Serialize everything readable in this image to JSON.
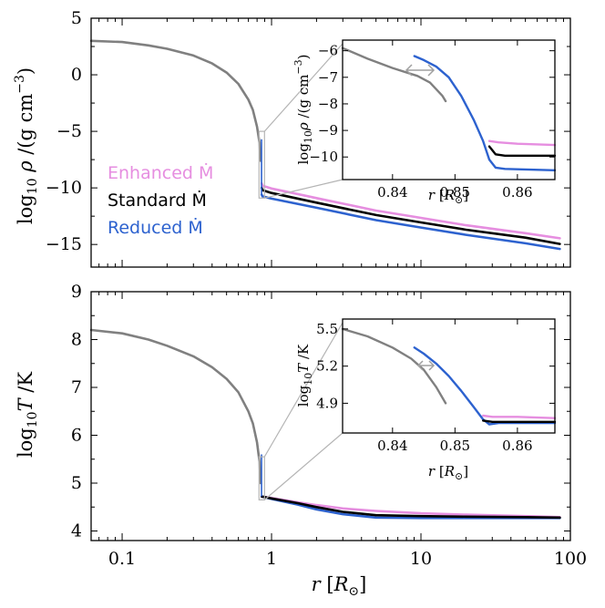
{
  "chart_data": [
    {
      "type": "line",
      "panel": "top",
      "xscale": "log",
      "xlim": [
        0.062,
        100
      ],
      "ylim": [
        -17,
        5
      ],
      "xlabel": "r [R_sun]",
      "ylabel": "log10 rho /(g cm^-3)",
      "yticks": [
        "5",
        "0",
        "−5",
        "−10",
        "−15"
      ],
      "ytick_values": [
        5,
        0,
        -5,
        -10,
        -15
      ],
      "grid": false,
      "legend_position": "left",
      "series": [
        {
          "name": "Enhanced Ṁ",
          "color": "#e68ee0",
          "x": [
            0.859,
            0.87,
            1.0,
            2.0,
            5.0,
            10,
            20,
            50,
            85
          ],
          "y": [
            -9.6,
            -9.8,
            -10.05,
            -10.9,
            -12.0,
            -12.65,
            -13.3,
            -14.0,
            -14.45
          ]
        },
        {
          "name": "Standard Ṁ",
          "color": "#000000",
          "x": [
            0.859,
            0.87,
            1.0,
            2.0,
            5.0,
            10,
            20,
            50,
            85
          ],
          "y": [
            -10.0,
            -10.2,
            -10.45,
            -11.3,
            -12.4,
            -13.05,
            -13.7,
            -14.4,
            -14.95
          ]
        },
        {
          "name": "Reduced Ṁ",
          "color": "#2d62cf",
          "x": [
            0.859,
            0.87,
            1.0,
            2.0,
            5.0,
            10,
            20,
            50,
            85
          ],
          "y": [
            -10.6,
            -10.75,
            -10.95,
            -11.75,
            -12.85,
            -13.5,
            -14.15,
            -14.9,
            -15.4
          ]
        },
        {
          "name": "",
          "color": "#808080",
          "x": [
            0.062,
            0.1,
            0.15,
            0.2,
            0.3,
            0.4,
            0.5,
            0.6,
            0.7,
            0.75,
            0.8,
            0.83,
            0.845
          ],
          "y": [
            3.0,
            2.9,
            2.6,
            2.3,
            1.7,
            1.0,
            0.2,
            -0.8,
            -2.2,
            -3.1,
            -4.6,
            -6.0,
            -7.6
          ]
        }
      ],
      "inset": {
        "xlim": [
          0.832,
          0.866
        ],
        "ylim": [
          -10.85,
          -5.6
        ],
        "xticks": [
          "0.84",
          "0.85",
          "0.86"
        ],
        "xtick_values": [
          0.84,
          0.85,
          0.86
        ],
        "yticks": [
          "−6",
          "−7",
          "−8",
          "−9",
          "−10"
        ],
        "ytick_values": [
          -6,
          -7,
          -8,
          -9,
          -10
        ],
        "xlabel": "r [R_sun]",
        "ylabel": "log10 rho /(g cm^-3)",
        "series": [
          {
            "name": "Enhanced Ṁ",
            "color": "#e68ee0",
            "x": [
              0.8555,
              0.857,
              0.86,
              0.866
            ],
            "y": [
              -9.4,
              -9.45,
              -9.5,
              -9.55
            ]
          },
          {
            "name": "Standard Ṁ",
            "color": "#000000",
            "x": [
              0.8555,
              0.8565,
              0.858,
              0.866
            ],
            "y": [
              -9.6,
              -9.9,
              -9.95,
              -9.95
            ]
          },
          {
            "name": "Reduced Ṁ",
            "color": "#2d62cf",
            "x": [
              0.8435,
              0.845,
              0.847,
              0.849,
              0.851,
              0.853,
              0.8545,
              0.8555,
              0.8565,
              0.858,
              0.866
            ],
            "y": [
              -6.2,
              -6.35,
              -6.6,
              -7.0,
              -7.7,
              -8.6,
              -9.4,
              -10.1,
              -10.4,
              -10.45,
              -10.5
            ]
          },
          {
            "name": "",
            "color": "#808080",
            "x": [
              0.832,
              0.836,
              0.84,
              0.844,
              0.846,
              0.848,
              0.8485
            ],
            "y": [
              -5.9,
              -6.3,
              -6.65,
              -6.95,
              -7.2,
              -7.7,
              -7.9
            ]
          }
        ]
      }
    },
    {
      "type": "line",
      "panel": "bottom",
      "xscale": "log",
      "xlim": [
        0.062,
        100
      ],
      "ylim": [
        3.8,
        9
      ],
      "xlabel": "r [R_sun]",
      "ylabel": "log10 T /K",
      "xticks": [
        "0.1",
        "1",
        "10",
        "100"
      ],
      "xtick_values": [
        0.1,
        1,
        10,
        100
      ],
      "yticks": [
        "9",
        "8",
        "7",
        "6",
        "5",
        "4"
      ],
      "ytick_values": [
        9,
        8,
        7,
        6,
        5,
        4
      ],
      "grid": false,
      "series": [
        {
          "name": "Enhanced Ṁ",
          "color": "#e68ee0",
          "x": [
            0.86,
            1.0,
            1.5,
            2.0,
            3.0,
            5.0,
            10,
            20,
            50,
            85
          ],
          "y": [
            4.72,
            4.69,
            4.6,
            4.54,
            4.47,
            4.42,
            4.37,
            4.34,
            4.31,
            4.29
          ]
        },
        {
          "name": "Standard Ṁ",
          "color": "#000000",
          "x": [
            0.86,
            1.0,
            1.5,
            2.0,
            3.0,
            5.0,
            10,
            20,
            50,
            85
          ],
          "y": [
            4.72,
            4.68,
            4.58,
            4.5,
            4.4,
            4.33,
            4.31,
            4.3,
            4.29,
            4.28
          ]
        },
        {
          "name": "Reduced Ṁ",
          "color": "#2d62cf",
          "x": [
            0.86,
            1.0,
            1.5,
            2.0,
            3.0,
            5.0,
            10,
            20,
            50,
            85
          ],
          "y": [
            4.72,
            4.67,
            4.55,
            4.45,
            4.35,
            4.28,
            4.27,
            4.27,
            4.27,
            4.27
          ]
        },
        {
          "name": "",
          "color": "#808080",
          "x": [
            0.062,
            0.1,
            0.15,
            0.2,
            0.3,
            0.4,
            0.5,
            0.6,
            0.7,
            0.75,
            0.8,
            0.83,
            0.845
          ],
          "y": [
            8.2,
            8.13,
            8.0,
            7.87,
            7.65,
            7.42,
            7.18,
            6.9,
            6.5,
            6.25,
            5.85,
            5.45,
            5.0
          ]
        }
      ],
      "inset": {
        "xlim": [
          0.832,
          0.866
        ],
        "ylim": [
          4.66,
          5.58
        ],
        "xticks": [
          "0.84",
          "0.85",
          "0.86"
        ],
        "xtick_values": [
          0.84,
          0.85,
          0.86
        ],
        "yticks": [
          "5.5",
          "5.2",
          "4.9"
        ],
        "ytick_values": [
          5.5,
          5.2,
          4.9
        ],
        "xlabel": "r [R_sun]",
        "ylabel": "log10 T /K",
        "series": [
          {
            "name": "Enhanced Ṁ",
            "color": "#e68ee0",
            "x": [
              0.8545,
              0.856,
              0.86,
              0.866
            ],
            "y": [
              4.8,
              4.79,
              4.79,
              4.78
            ]
          },
          {
            "name": "Standard Ṁ",
            "color": "#000000",
            "x": [
              0.8545,
              0.856,
              0.86,
              0.866
            ],
            "y": [
              4.76,
              4.75,
              4.75,
              4.75
            ]
          },
          {
            "name": "Reduced Ṁ",
            "color": "#2d62cf",
            "x": [
              0.8435,
              0.845,
              0.847,
              0.849,
              0.851,
              0.853,
              0.8545,
              0.8555,
              0.857,
              0.86,
              0.866
            ],
            "y": [
              5.35,
              5.3,
              5.22,
              5.12,
              5.0,
              4.87,
              4.77,
              4.73,
              4.74,
              4.74,
              4.74
            ]
          },
          {
            "name": "",
            "color": "#808080",
            "x": [
              0.832,
              0.836,
              0.84,
              0.843,
              0.845,
              0.847,
              0.8485
            ],
            "y": [
              5.5,
              5.44,
              5.35,
              5.26,
              5.17,
              5.03,
              4.9
            ]
          }
        ]
      }
    }
  ],
  "legend": [
    {
      "label": "Enhanced Ṁ",
      "color": "#e68ee0"
    },
    {
      "label": "Standard Ṁ",
      "color": "#000000"
    },
    {
      "label": "Reduced Ṁ",
      "color": "#2d62cf"
    }
  ],
  "colors": {
    "enhanced": "#e68ee0",
    "standard": "#000000",
    "reduced": "#2d62cf",
    "interior": "#808080",
    "connector": "#b4b4b4"
  }
}
